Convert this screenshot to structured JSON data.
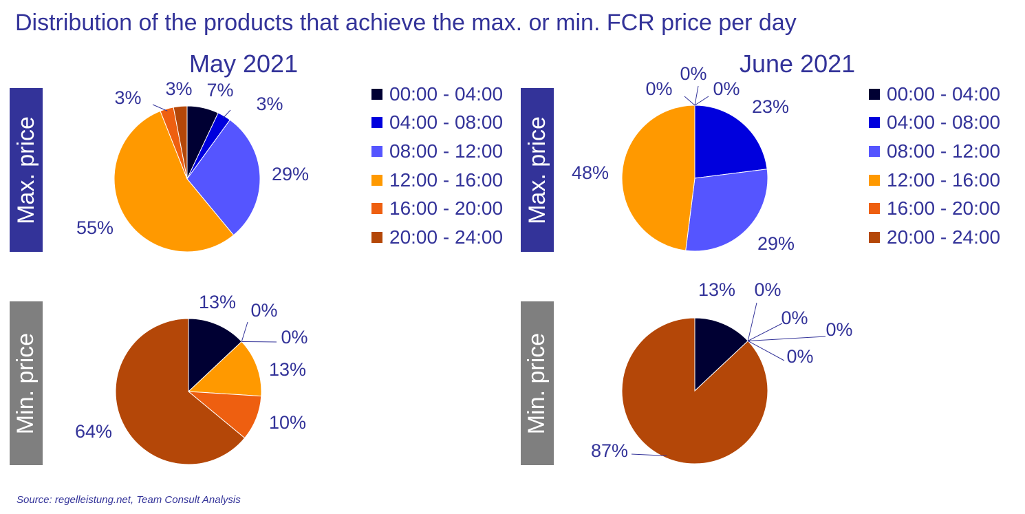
{
  "title": "Distribution of the products that achieve the max. or min. FCR price per day",
  "source": "Source: regelleistung.net,  Team Consult Analysis",
  "months": [
    "May 2021",
    "June 2021"
  ],
  "rows": [
    "Max. price",
    "Min. price"
  ],
  "colors": {
    "text": "#333399",
    "max_box": "#333399",
    "min_box": "#7f7f7f"
  },
  "legend": [
    {
      "label": "00:00 - 04:00",
      "color": "#000033"
    },
    {
      "label": "04:00 - 08:00",
      "color": "#0000dd"
    },
    {
      "label": "08:00 - 12:00",
      "color": "#5555ff"
    },
    {
      "label": "12:00 - 16:00",
      "color": "#ff9900"
    },
    {
      "label": "16:00 - 20:00",
      "color": "#ee5f10"
    },
    {
      "label": "20:00 - 24:00",
      "color": "#b44708"
    }
  ],
  "chart_data": [
    {
      "type": "pie",
      "title": "May 2021",
      "row": "Max. price",
      "categories": [
        "00:00 - 04:00",
        "04:00 - 08:00",
        "08:00 - 12:00",
        "12:00 - 16:00",
        "16:00 - 20:00",
        "20:00 - 24:00"
      ],
      "values": [
        7,
        3,
        29,
        55,
        3,
        3
      ],
      "labels": [
        "7%",
        "3%",
        "29%",
        "55%",
        "3%",
        "3%"
      ]
    },
    {
      "type": "pie",
      "title": "June 2021",
      "row": "Max. price",
      "categories": [
        "00:00 - 04:00",
        "04:00 - 08:00",
        "08:00 - 12:00",
        "12:00 - 16:00",
        "16:00 - 20:00",
        "20:00 - 24:00"
      ],
      "values": [
        0,
        23,
        29,
        48,
        0,
        0
      ],
      "labels": [
        "0%",
        "23%",
        "29%",
        "48%",
        "0%",
        "0%"
      ]
    },
    {
      "type": "pie",
      "title": "May 2021",
      "row": "Min. price",
      "categories": [
        "00:00 - 04:00",
        "04:00 - 08:00",
        "08:00 - 12:00",
        "12:00 - 16:00",
        "16:00 - 20:00",
        "20:00 - 24:00"
      ],
      "values": [
        13,
        0,
        0,
        13,
        10,
        64
      ],
      "labels": [
        "13%",
        "0%",
        "0%",
        "13%",
        "10%",
        "64%"
      ]
    },
    {
      "type": "pie",
      "title": "June 2021",
      "row": "Min. price",
      "categories": [
        "00:00 - 04:00",
        "04:00 - 08:00",
        "08:00 - 12:00",
        "12:00 - 16:00",
        "16:00 - 20:00",
        "20:00 - 24:00"
      ],
      "values": [
        13,
        0,
        0,
        0,
        0,
        87
      ],
      "labels": [
        "13%",
        "0%",
        "0%",
        "0%",
        "0%",
        "87%"
      ]
    }
  ]
}
